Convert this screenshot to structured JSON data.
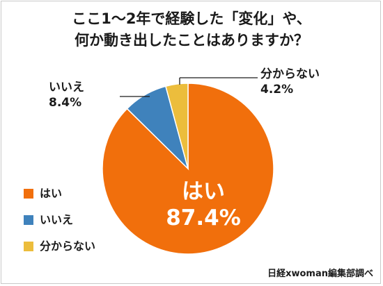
{
  "chart_data": {
    "type": "pie",
    "title_lines": [
      "ここ1～2年で経験した「変化」や、",
      "何か動き出したことはありますか？"
    ],
    "slices": [
      {
        "label": "はい",
        "value": 87.4,
        "value_label": "87.4%",
        "color": "#f16f0c"
      },
      {
        "label": "いいえ",
        "value": 8.4,
        "value_label": "8.4%",
        "color": "#3f82bc"
      },
      {
        "label": "分からない",
        "value": 4.2,
        "value_label": "4.2%",
        "color": "#ecbd3c"
      }
    ],
    "legend": [
      "はい",
      "いいえ",
      "分からない"
    ],
    "legend_placement": "left",
    "start_angle_deg": 0,
    "direction": "clockwise"
  },
  "source": "日経xwoman編集部調べ"
}
